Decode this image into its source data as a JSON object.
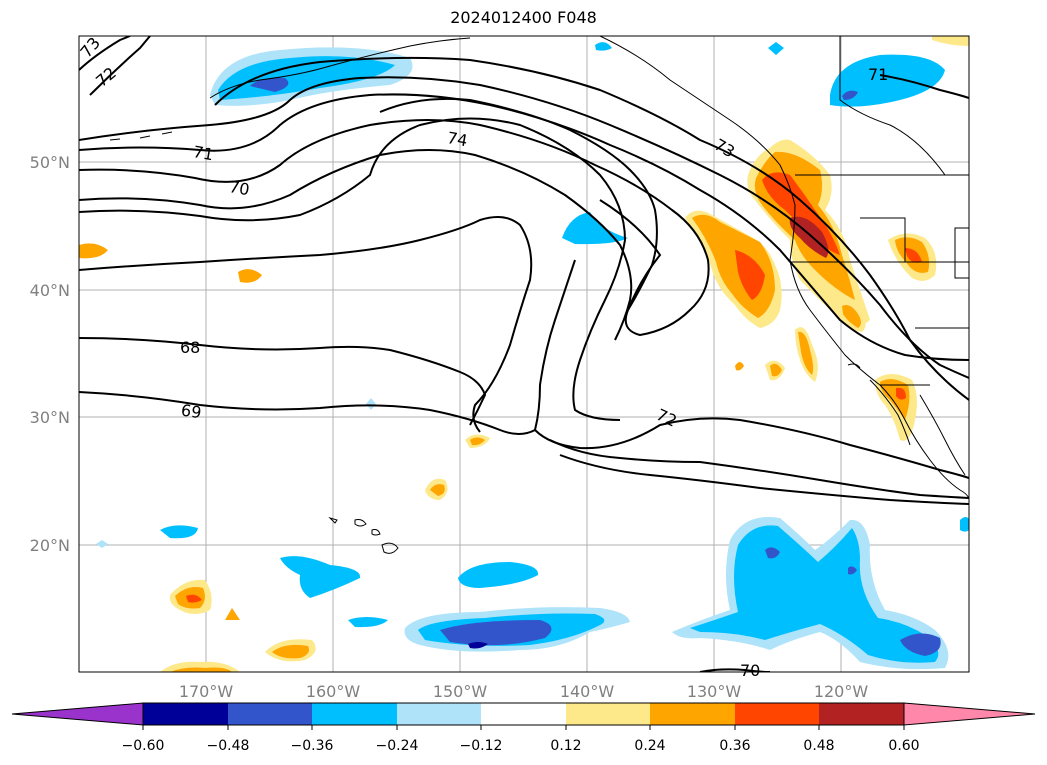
{
  "title": "2024012400 F048",
  "map": {
    "lat_labels": [
      "50°N",
      "40°N",
      "30°N",
      "20°N"
    ],
    "lon_labels": [
      "170°W",
      "160°W",
      "150°W",
      "140°W",
      "130°W",
      "120°W"
    ],
    "contour_labels": [
      "73",
      "72",
      "71",
      "70",
      "74",
      "73",
      "68",
      "69",
      "72",
      "71",
      "70"
    ],
    "colors": {
      "grid": "#b0b0b0",
      "contour": "#000000",
      "coast": "#000000"
    }
  },
  "colorbar": {
    "tick_labels": [
      "−0.60",
      "−0.48",
      "−0.36",
      "−0.24",
      "−0.12",
      "0.12",
      "0.24",
      "0.36",
      "0.48",
      "0.60"
    ],
    "colors": [
      "#9933cc",
      "#000099",
      "#3355cc",
      "#00bfff",
      "#aee3fa",
      "#ffffff",
      "#fde88a",
      "#ffa500",
      "#ff4500",
      "#b22222",
      "#ff88aa"
    ]
  }
}
